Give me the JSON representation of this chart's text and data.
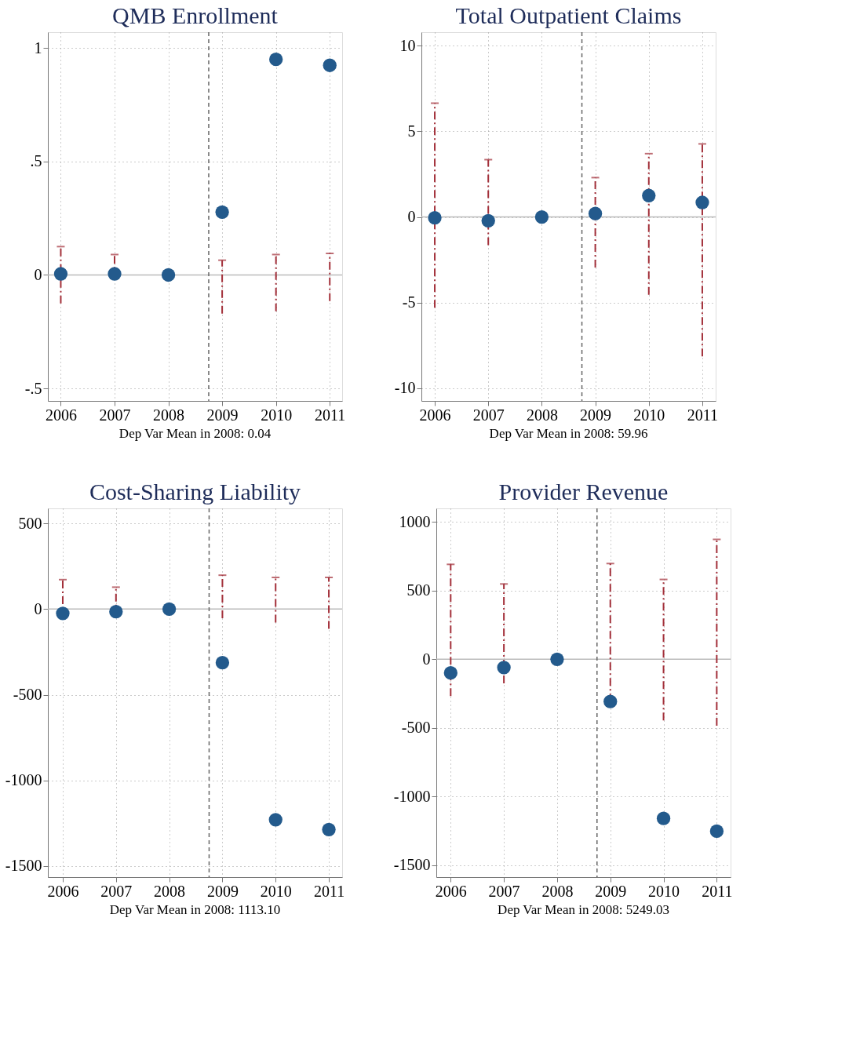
{
  "chart_data": [
    {
      "type": "scatter",
      "title": "QMB Enrollment",
      "x": [
        2006,
        2007,
        2008,
        2009,
        2010,
        2011
      ],
      "xlim": [
        2005.76,
        2011.23
      ],
      "xticks": [
        2006,
        2007,
        2008,
        2009,
        2010,
        2011
      ],
      "ylim": [
        -0.555,
        1.07
      ],
      "yticks": [
        {
          "value": -0.5,
          "label": "-.5"
        },
        0,
        {
          "value": 0.5,
          "label": ".5"
        },
        1
      ],
      "grid": true,
      "marker": "circle",
      "series": [
        {
          "color": "#235a8c",
          "values": [
            0.005,
            0.005,
            0,
            0.277,
            0.95,
            0.924
          ],
          "errors": [
            [
              -0.125,
              0.125
            ],
            [
              -0.02,
              0.09
            ],
            null,
            [
              -0.17,
              0.065
            ],
            [
              -0.16,
              0.09
            ],
            [
              -0.115,
              0.095
            ]
          ]
        }
      ],
      "ref_lines": [
        {
          "axis": "y",
          "value": 0,
          "color": "#bbbbbb",
          "line_style": "solid"
        },
        {
          "axis": "x",
          "value": 2008.75,
          "color": "#666666",
          "line_style": "dashed"
        }
      ],
      "annotations": [
        "Dep Var Mean in 2008: 0.04"
      ]
    },
    {
      "type": "scatter",
      "title": "Total Outpatient Claims",
      "x": [
        2006,
        2007,
        2008,
        2009,
        2010,
        2011
      ],
      "xlim": [
        2005.75,
        2011.25
      ],
      "xticks": [
        2006,
        2007,
        2008,
        2009,
        2010,
        2011
      ],
      "ylim": [
        -10.75,
        10.8
      ],
      "yticks": [
        -10,
        -5,
        0,
        5,
        10
      ],
      "grid": true,
      "marker": "circle",
      "series": [
        {
          "color": "#235a8c",
          "values": [
            -0.05,
            -0.22,
            0,
            0.2,
            1.25,
            0.85
          ],
          "errors": [
            [
              -5.3,
              6.65
            ],
            [
              -1.65,
              3.35
            ],
            null,
            [
              -2.95,
              2.3
            ],
            [
              -4.55,
              3.7
            ],
            [
              -8.15,
              4.27
            ]
          ]
        }
      ],
      "ref_lines": [
        {
          "axis": "y",
          "value": 0,
          "color": "#bbbbbb",
          "line_style": "solid"
        },
        {
          "axis": "x",
          "value": 2008.75,
          "color": "#666666",
          "line_style": "dashed"
        }
      ],
      "annotations": [
        "Dep Var Mean in 2008: 59.96"
      ]
    },
    {
      "type": "scatter",
      "title": "Cost-Sharing Liability",
      "x": [
        2006,
        2007,
        2008,
        2009,
        2010,
        2011
      ],
      "xlim": [
        2005.72,
        2011.25
      ],
      "xticks": [
        2006,
        2007,
        2008,
        2009,
        2010,
        2011
      ],
      "ylim": [
        -1565,
        588
      ],
      "yticks": [
        -1500,
        -1000,
        -500,
        0,
        500
      ],
      "grid": true,
      "marker": "circle",
      "series": [
        {
          "color": "#235a8c",
          "values": [
            -25,
            -15,
            0,
            -313,
            -1230,
            -1287
          ],
          "errors": [
            [
              -62,
              172
            ],
            [
              -48,
              128
            ],
            null,
            [
              -53,
              198
            ],
            [
              -79,
              185
            ],
            [
              -115,
              185
            ]
          ]
        }
      ],
      "ref_lines": [
        {
          "axis": "y",
          "value": 0,
          "color": "#bbbbbb",
          "line_style": "solid"
        },
        {
          "axis": "x",
          "value": 2008.75,
          "color": "#666666",
          "line_style": "dashed"
        }
      ],
      "annotations": [
        "Dep Var Mean in 2008: 1113.10"
      ]
    },
    {
      "type": "scatter",
      "title": "Provider Revenue",
      "x": [
        2006,
        2007,
        2008,
        2009,
        2010,
        2011
      ],
      "xlim": [
        2005.73,
        2011.26
      ],
      "xticks": [
        2006,
        2007,
        2008,
        2009,
        2010,
        2011
      ],
      "ylim": [
        -1588,
        1100
      ],
      "yticks": [
        -1500,
        -1000,
        -500,
        0,
        500,
        1000
      ],
      "grid": true,
      "marker": "circle",
      "series": [
        {
          "color": "#235a8c",
          "values": [
            -99,
            -60,
            0,
            -308,
            -1160,
            -1253
          ],
          "errors": [
            [
              -269,
              692
            ],
            [
              -176,
              549
            ],
            null,
            [
              -308,
              698
            ],
            [
              -445,
              582
            ],
            [
              -484,
              874
            ]
          ]
        }
      ],
      "ref_lines": [
        {
          "axis": "y",
          "value": 0,
          "color": "#bbbbbb",
          "line_style": "solid"
        },
        {
          "axis": "x",
          "value": 2008.75,
          "color": "#666666",
          "line_style": "dashed"
        }
      ],
      "annotations": [
        "Dep Var Mean in 2008: 5249.03"
      ]
    }
  ]
}
